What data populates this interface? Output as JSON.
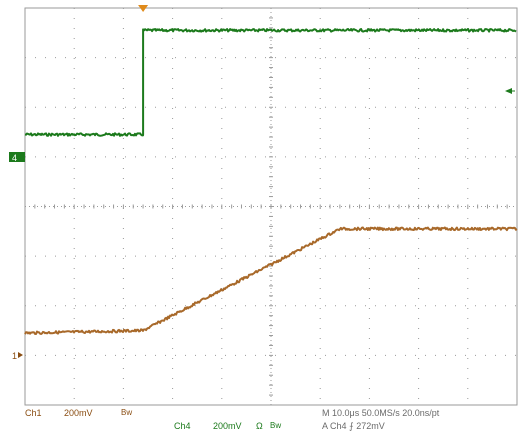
{
  "chart_data": {
    "type": "line",
    "title": "",
    "xlabel": "",
    "ylabel": "",
    "grid": true,
    "x_divisions": 10,
    "y_divisions": 8,
    "series": [
      {
        "name": "Ch4",
        "channel": "Ch4",
        "color": "#1c7a1c",
        "x_div": [
          0,
          2.4,
          2.4,
          10
        ],
        "y_div": [
          -2.55,
          -2.55,
          -0.45,
          -0.45
        ]
      },
      {
        "name": "Ch1",
        "channel": "Ch1",
        "color": "#a8692a",
        "x_div": [
          0,
          2.4,
          6.4,
          10
        ],
        "y_div": [
          -6.55,
          -6.5,
          -4.45,
          -4.45
        ]
      }
    ],
    "markers": {
      "trigger_position": "top",
      "ch4_marker_label": "4",
      "ch1_marker_label": "1"
    }
  },
  "readout": {
    "ch1_label": "Ch1",
    "ch1_scale": "200mV",
    "ch1_bw": "Bw",
    "ch4_label": "Ch4",
    "ch4_scale": "200mV",
    "ch4_ohm": "Ω",
    "ch4_bw": "Bw",
    "timebase": "M 10.0μs 50.0MS/s 20.0ns/pt",
    "trigger": "A  Ch4  ⨍  272mV"
  },
  "colors": {
    "ch1": "#a8692a",
    "ch4": "#1c7a1c",
    "grid": "#9a9a9a",
    "trigger": "#e08a1a"
  }
}
